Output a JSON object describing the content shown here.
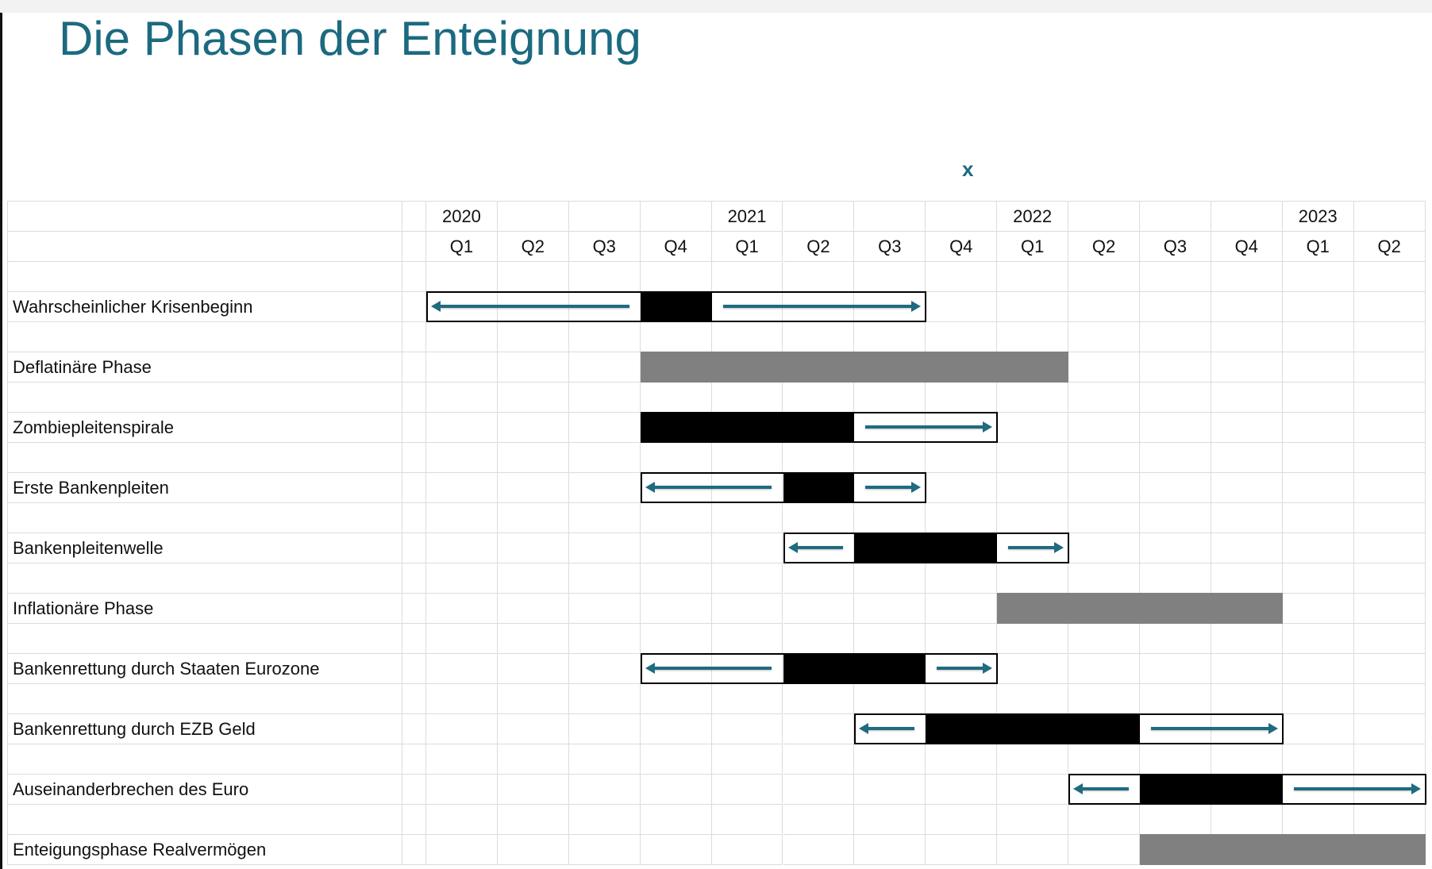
{
  "title": "Die Phasen der Enteignung",
  "marker": "x",
  "colors": {
    "title": "#1b6a80",
    "arrow": "#1f6b80",
    "phase_gray": "#808080",
    "solid": "#000000"
  },
  "chart_data": {
    "type": "gantt",
    "title": "Die Phasen der Enteignung",
    "years": [
      {
        "label": "2020",
        "quarter_index": 0
      },
      {
        "label": "2021",
        "quarter_index": 4
      },
      {
        "label": "2022",
        "quarter_index": 8
      },
      {
        "label": "2023",
        "quarter_index": 12
      }
    ],
    "quarters": [
      "Q1",
      "Q2",
      "Q3",
      "Q4",
      "Q1",
      "Q2",
      "Q3",
      "Q4",
      "Q1",
      "Q2",
      "Q3",
      "Q4",
      "Q1",
      "Q2"
    ],
    "quarter_ids": [
      "2020-Q1",
      "2020-Q2",
      "2020-Q3",
      "2020-Q4",
      "2021-Q1",
      "2021-Q2",
      "2021-Q3",
      "2021-Q4",
      "2022-Q1",
      "2022-Q2",
      "2022-Q3",
      "2022-Q4",
      "2023-Q1",
      "2023-Q2"
    ],
    "tasks": [
      {
        "label": "Wahrscheinlicher Krisenbeginn",
        "range": [
          "2020-Q1",
          "2021-Q3"
        ],
        "core": [
          "2020-Q4",
          "2020-Q4"
        ],
        "arrows": [
          "left",
          "right"
        ],
        "style": "solid"
      },
      {
        "label": "Deflatinäre Phase",
        "range": [
          "2020-Q4",
          "2022-Q1"
        ],
        "core": [
          "2020-Q4",
          "2022-Q1"
        ],
        "arrows": [],
        "style": "gray"
      },
      {
        "label": "Zombiepleitenspirale",
        "range": [
          "2020-Q4",
          "2021-Q4"
        ],
        "core": [
          "2020-Q4",
          "2021-Q2"
        ],
        "arrows": [
          "right"
        ],
        "style": "solid"
      },
      {
        "label": "Erste Bankenpleiten",
        "range": [
          "2020-Q4",
          "2021-Q3"
        ],
        "core": [
          "2021-Q2",
          "2021-Q2"
        ],
        "arrows": [
          "left",
          "right"
        ],
        "style": "solid"
      },
      {
        "label": "Bankenpleitenwelle",
        "range": [
          "2021-Q2",
          "2022-Q1"
        ],
        "core": [
          "2021-Q3",
          "2021-Q4"
        ],
        "arrows": [
          "left",
          "right"
        ],
        "style": "solid"
      },
      {
        "label": "Inflationäre Phase",
        "range": [
          "2022-Q1",
          "2022-Q4"
        ],
        "core": [
          "2022-Q1",
          "2022-Q4"
        ],
        "arrows": [],
        "style": "gray"
      },
      {
        "label": "Bankenrettung durch Staaten Eurozone",
        "range": [
          "2020-Q4",
          "2021-Q4"
        ],
        "core": [
          "2021-Q2",
          "2021-Q3"
        ],
        "arrows": [
          "left",
          "right"
        ],
        "style": "solid"
      },
      {
        "label": "Bankenrettung durch EZB Geld",
        "range": [
          "2021-Q3",
          "2022-Q4"
        ],
        "core": [
          "2021-Q4",
          "2022-Q2"
        ],
        "arrows": [
          "left",
          "right"
        ],
        "style": "solid"
      },
      {
        "label": "Auseinanderbrechen des Euro",
        "range": [
          "2022-Q2",
          "2023-Q2"
        ],
        "core": [
          "2022-Q3",
          "2022-Q4"
        ],
        "arrows": [
          "left",
          "right"
        ],
        "style": "solid"
      },
      {
        "label": "Enteigungsphase Realvermögen",
        "range": [
          "2022-Q3",
          "2023-Q2"
        ],
        "core": [
          "2022-Q3",
          "2023-Q2"
        ],
        "arrows": [],
        "style": "gray"
      }
    ]
  }
}
